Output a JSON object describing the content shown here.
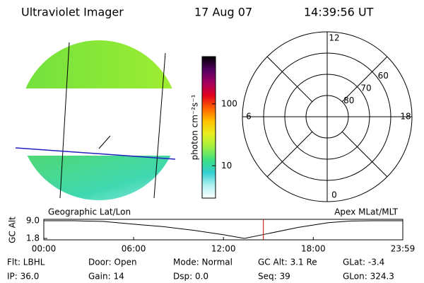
{
  "header": {
    "title": "Ultraviolet Imager",
    "date": "17 Aug 07",
    "time": "14:39:56 UT"
  },
  "colorbar": {
    "label": "photon cm⁻²s⁻¹",
    "ylim": [
      3,
      580
    ],
    "log": true,
    "yticks": [
      10,
      100
    ],
    "colors": [
      "#ffffff",
      "#b0f0f0",
      "#30d0d0",
      "#40e080",
      "#a0f040",
      "#e8f020",
      "#ffc000",
      "#ff6000",
      "#e00020",
      "#a00060",
      "#500060",
      "#000000"
    ]
  },
  "polar": {
    "rlim": [
      90,
      50
    ],
    "rings": [
      80,
      70,
      60
    ],
    "mlt_ticks": [
      0,
      6,
      12,
      18
    ],
    "mlt_lines": [
      3,
      9,
      15,
      21
    ]
  },
  "chart_data": {
    "type": "line",
    "ylabel": "GC Alt",
    "left_label": "Geographic Lat/Lon",
    "right_label": "Apex MLat/MLT",
    "x": [
      0,
      2,
      4,
      6,
      8,
      10,
      12,
      13.4,
      15,
      17,
      19,
      20.5,
      22,
      23.98
    ],
    "values": [
      9.0,
      9.0,
      8.7,
      7.6,
      6.6,
      5.1,
      3.3,
      1.8,
      3.8,
      6.3,
      8.2,
      8.9,
      9.0,
      9.0
    ],
    "color": "#000000",
    "xlim": [
      0,
      23.98
    ],
    "xticks": [
      {
        "value": 0,
        "label": "00:00"
      },
      {
        "value": 6,
        "label": "06:00"
      },
      {
        "value": 12,
        "label": "12:00"
      },
      {
        "value": 18,
        "label": "18:00"
      },
      {
        "value": 23.98,
        "label": "23:59"
      }
    ],
    "ylim": [
      1.8,
      9.0
    ],
    "yticks": [
      {
        "value": 9.0,
        "label": "9.0"
      },
      {
        "value": 1.8,
        "label": "1.8"
      }
    ],
    "marker_x": 14.666,
    "marker_color": "#c00000"
  },
  "footer": {
    "rows": [
      [
        "Flt: LBHL",
        "Door: Open",
        "Mode: Normal",
        "GC Alt: 3.1 Re",
        "GLat: -3.4"
      ],
      [
        "IP: 36.0",
        "Gain: 14",
        "Dsp: 0.0",
        "Seq: 39",
        "GLon: 324.3"
      ]
    ]
  }
}
